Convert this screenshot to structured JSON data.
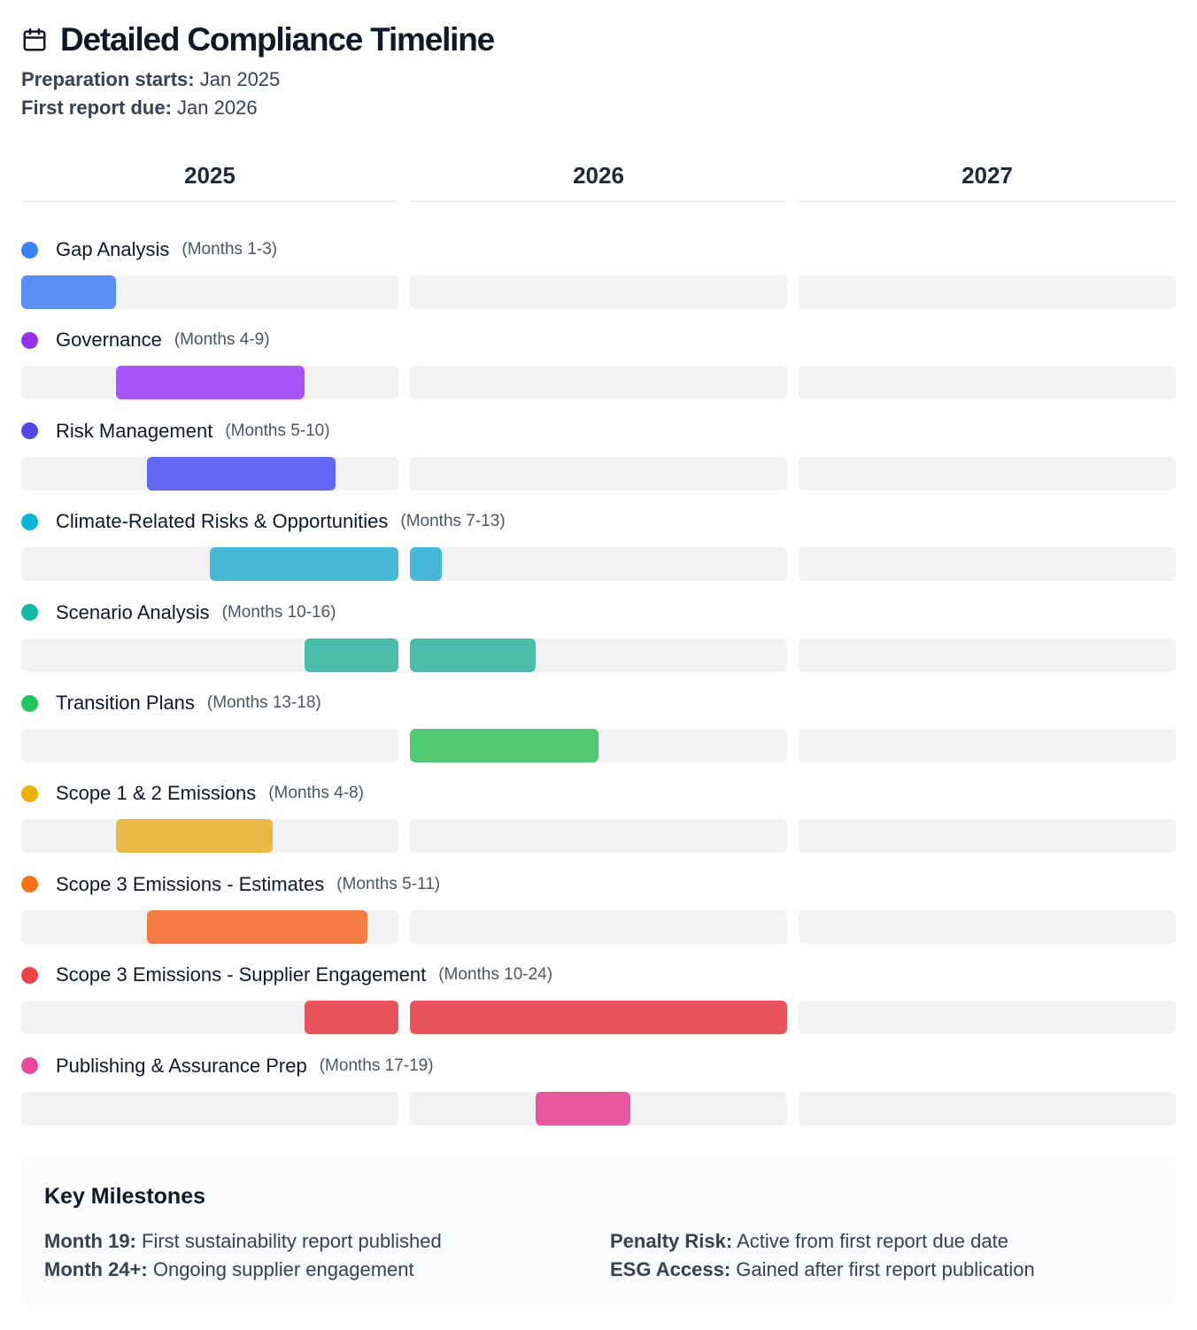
{
  "header": {
    "title": "Detailed Compliance Timeline",
    "prep_label": "Preparation starts:",
    "prep_value": "Jan 2025",
    "due_label": "First report due:",
    "due_value": "Jan 2026",
    "icon": "calendar-icon"
  },
  "chart_data": {
    "type": "gantt",
    "unit": "month",
    "years": [
      "2025",
      "2026",
      "2027"
    ],
    "months_per_year": 12,
    "tasks": [
      {
        "name": "Gap Analysis",
        "range_label": "(Months 1-3)",
        "start": 1,
        "end": 3,
        "color": "#3b82f6",
        "bar_color": "#5b8ff5"
      },
      {
        "name": "Governance",
        "range_label": "(Months 4-9)",
        "start": 4,
        "end": 9,
        "color": "#9333ea",
        "bar_color": "#a855f7"
      },
      {
        "name": "Risk Management",
        "range_label": "(Months 5-10)",
        "start": 5,
        "end": 10,
        "color": "#4f46e5",
        "bar_color": "#6366f1"
      },
      {
        "name": "Climate-Related Risks & Opportunities",
        "range_label": "(Months 7-13)",
        "start": 7,
        "end": 13,
        "color": "#06b6d4",
        "bar_color": "#47b7d6"
      },
      {
        "name": "Scenario Analysis",
        "range_label": "(Months 10-16)",
        "start": 10,
        "end": 16,
        "color": "#14b8a6",
        "bar_color": "#4bbca7"
      },
      {
        "name": "Transition Plans",
        "range_label": "(Months 13-18)",
        "start": 13,
        "end": 18,
        "color": "#22c55e",
        "bar_color": "#50c972"
      },
      {
        "name": "Scope 1 & 2 Emissions",
        "range_label": "(Months 4-8)",
        "start": 4,
        "end": 8,
        "color": "#eab308",
        "bar_color": "#e8b947"
      },
      {
        "name": "Scope 3 Emissions - Estimates",
        "range_label": "(Months 5-11)",
        "start": 5,
        "end": 11,
        "color": "#f97316",
        "bar_color": "#f47c44"
      },
      {
        "name": "Scope 3 Emissions - Supplier Engagement",
        "range_label": "(Months 10-24)",
        "start": 10,
        "end": 24,
        "color": "#ef4444",
        "bar_color": "#e8535c"
      },
      {
        "name": "Publishing & Assurance Prep",
        "range_label": "(Months 17-19)",
        "start": 17,
        "end": 19,
        "color": "#ec4899",
        "bar_color": "#e8579d"
      }
    ]
  },
  "milestones": {
    "title": "Key Milestones",
    "items": [
      {
        "label": "Month 19:",
        "text": "First sustainability report published"
      },
      {
        "label": "Penalty Risk:",
        "text": "Active from first report due date"
      },
      {
        "label": "Month 24+:",
        "text": "Ongoing supplier engagement"
      },
      {
        "label": "ESG Access:",
        "text": "Gained after first report publication"
      }
    ]
  }
}
